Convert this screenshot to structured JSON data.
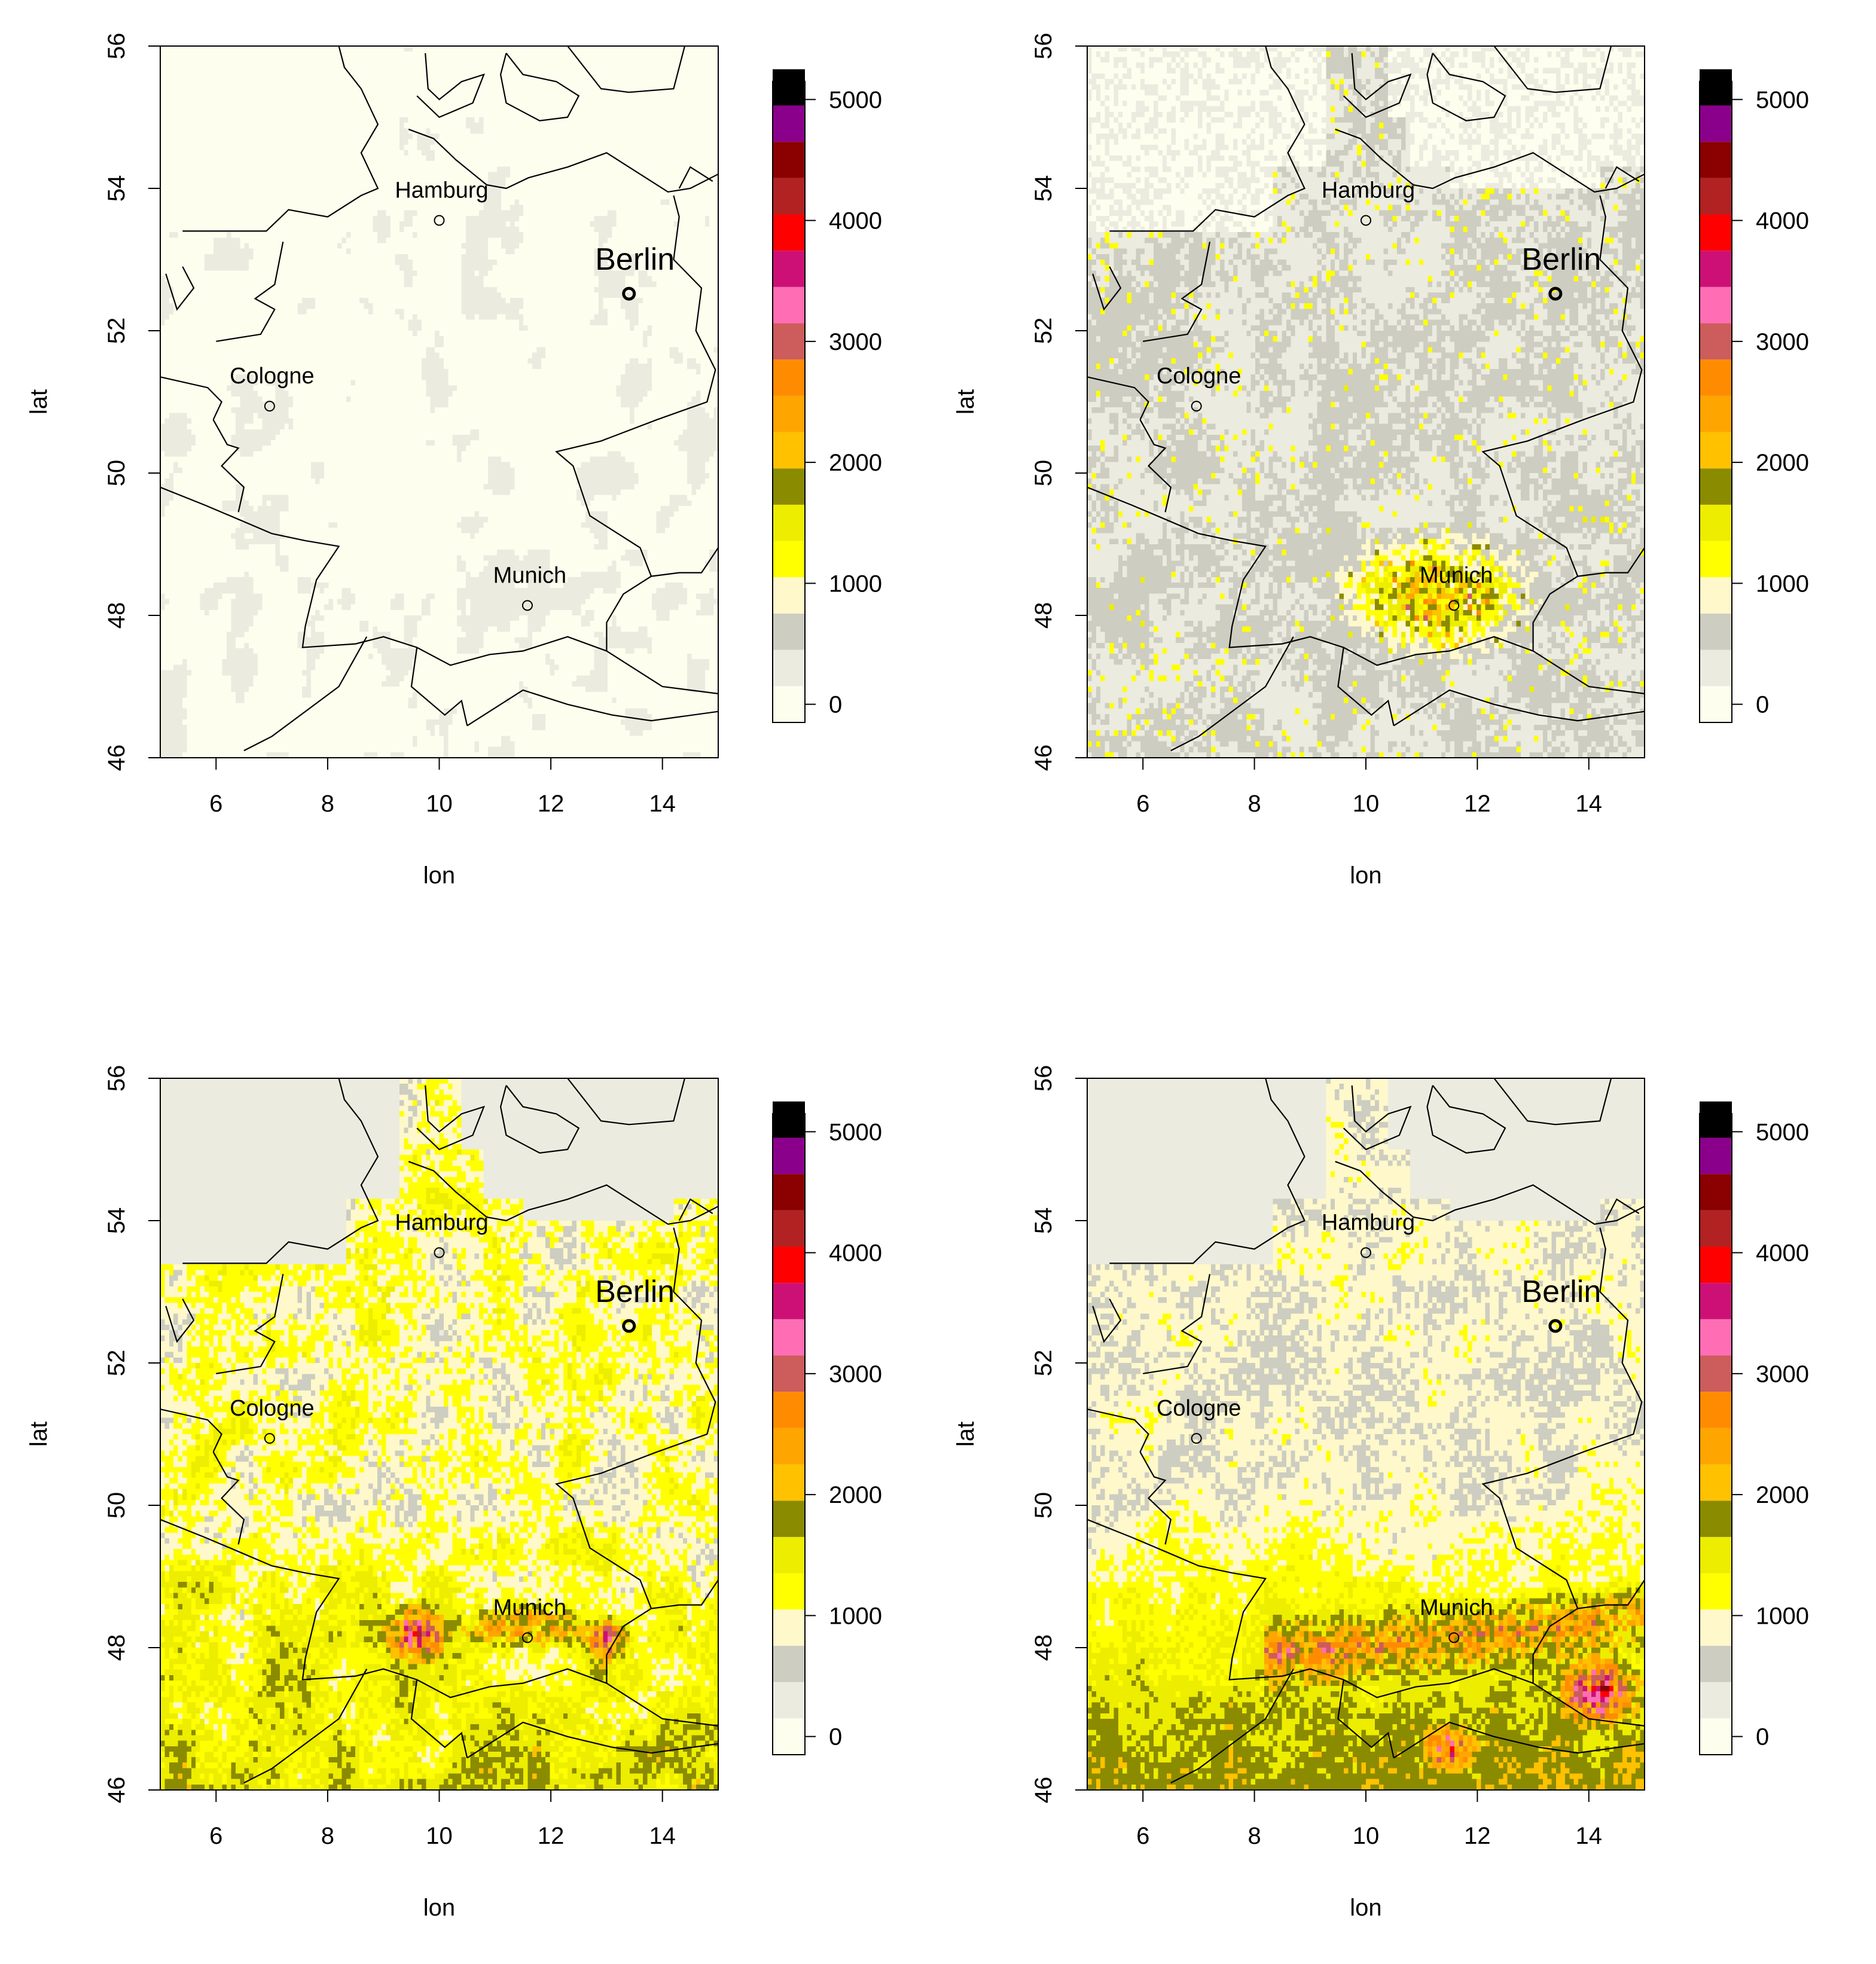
{
  "figure": {
    "palette": [
      "#fefeee",
      "#ebebe0",
      "#cdcdc1",
      "#fff8cb",
      "#ffff00",
      "#eded00",
      "#8b8b00",
      "#ffc100",
      "#ffa500",
      "#ff8c00",
      "#cd5c5c",
      "#ff6eb4",
      "#cd1076",
      "#ff0000",
      "#b22222",
      "#8b0000",
      "#8b008b",
      "#000000"
    ],
    "city_colors": {
      "outline": "#000000",
      "land_line": "#000000"
    }
  },
  "chart_data": [
    {
      "type": "heatmap",
      "panel": "top-left",
      "xlabel": "lon",
      "ylabel": "lat",
      "xlim": [
        5,
        15
      ],
      "ylim": [
        46,
        56
      ],
      "x_ticks": [
        "6",
        "8",
        "10",
        "12",
        "14"
      ],
      "y_ticks": [
        "46",
        "48",
        "50",
        "52",
        "54",
        "56"
      ],
      "colorbar": {
        "range": [
          -150,
          5150
        ],
        "step": 300,
        "tick_labels": [
          "0",
          "1000",
          "2000",
          "3000",
          "4000",
          "5000"
        ]
      },
      "field_level": "very low: nearly all cells 0-300, faint grey patches",
      "cities": [
        {
          "name": "Hamburg",
          "lon": 10.0,
          "lat": 53.55,
          "size": "small"
        },
        {
          "name": "Berlin",
          "lon": 13.4,
          "lat": 52.52,
          "size": "large"
        },
        {
          "name": "Cologne",
          "lon": 6.96,
          "lat": 50.94,
          "size": "small"
        },
        {
          "name": "Munich",
          "lon": 11.58,
          "lat": 48.14,
          "size": "small"
        }
      ]
    },
    {
      "type": "heatmap",
      "panel": "top-right",
      "xlabel": "lon",
      "ylabel": "lat",
      "xlim": [
        5,
        15
      ],
      "ylim": [
        46,
        56
      ],
      "x_ticks": [
        "6",
        "8",
        "10",
        "12",
        "14"
      ],
      "y_ticks": [
        "46",
        "48",
        "50",
        "52",
        "54",
        "56"
      ],
      "colorbar": {
        "range": [
          -150,
          5150
        ],
        "step": 300,
        "tick_labels": [
          "0",
          "1000",
          "2000",
          "3000",
          "4000",
          "5000"
        ]
      },
      "field_level": "low: mostly 0-600 grey, yellow 900-1800 cluster around Munich",
      "cities": [
        {
          "name": "Hamburg",
          "lon": 10.0,
          "lat": 53.55,
          "size": "small"
        },
        {
          "name": "Berlin",
          "lon": 13.4,
          "lat": 52.52,
          "size": "large"
        },
        {
          "name": "Cologne",
          "lon": 6.96,
          "lat": 50.94,
          "size": "small"
        },
        {
          "name": "Munich",
          "lon": 11.58,
          "lat": 48.14,
          "size": "small"
        }
      ]
    },
    {
      "type": "heatmap",
      "panel": "bottom-left",
      "xlabel": "lon",
      "ylabel": "lat",
      "xlim": [
        5,
        15
      ],
      "ylim": [
        46,
        56
      ],
      "x_ticks": [
        "6",
        "8",
        "10",
        "12",
        "14"
      ],
      "y_ticks": [
        "46",
        "48",
        "50",
        "52",
        "54",
        "56"
      ],
      "colorbar": {
        "range": [
          -150,
          5150
        ],
        "step": 300,
        "tick_labels": [
          "0",
          "1000",
          "2000",
          "3000",
          "4000",
          "5000"
        ]
      },
      "field_level": "high: widespread yellow 900-1800, orange/magenta 2100-3600 peaks in south near Munich and lon 9-10",
      "cities": [
        {
          "name": "Hamburg",
          "lon": 10.0,
          "lat": 53.55,
          "size": "small"
        },
        {
          "name": "Berlin",
          "lon": 13.4,
          "lat": 52.52,
          "size": "large"
        },
        {
          "name": "Cologne",
          "lon": 6.96,
          "lat": 50.94,
          "size": "small"
        },
        {
          "name": "Munich",
          "lon": 11.58,
          "lat": 48.14,
          "size": "small"
        }
      ]
    },
    {
      "type": "heatmap",
      "panel": "bottom-right",
      "xlabel": "lon",
      "ylabel": "lat",
      "xlim": [
        5,
        15
      ],
      "ylim": [
        46,
        56
      ],
      "x_ticks": [
        "6",
        "8",
        "10",
        "12",
        "14"
      ],
      "y_ticks": [
        "46",
        "48",
        "50",
        "52",
        "54",
        "56"
      ],
      "colorbar": {
        "range": [
          -150,
          5150
        ],
        "step": 300,
        "tick_labels": [
          "0",
          "1000",
          "2000",
          "3000",
          "4000",
          "5000"
        ]
      },
      "field_level": "medium-high: grey north, yellow-olive 900-2100 band across south, pink peaks 3000-3600 in southeast",
      "cities": [
        {
          "name": "Hamburg",
          "lon": 10.0,
          "lat": 53.55,
          "size": "small"
        },
        {
          "name": "Berlin",
          "lon": 13.4,
          "lat": 52.52,
          "size": "large"
        },
        {
          "name": "Cologne",
          "lon": 6.96,
          "lat": 50.94,
          "size": "small"
        },
        {
          "name": "Munich",
          "lon": 11.58,
          "lat": 48.14,
          "size": "small"
        }
      ]
    }
  ]
}
